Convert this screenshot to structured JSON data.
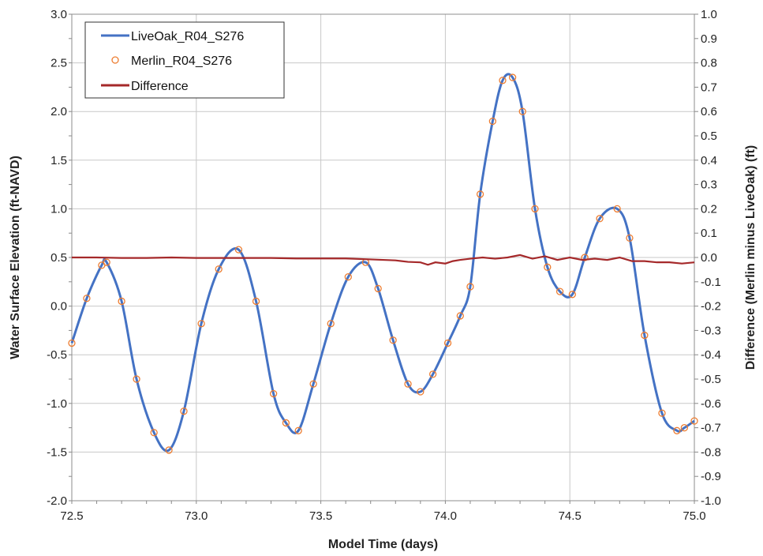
{
  "chart_data": {
    "type": "line",
    "xlabel": "Model Time (days)",
    "ylabel": "Water Surface Elevation (ft-NAVD)",
    "y2label": "Difference (Merlin minus LiveOak) (ft)",
    "xlim": [
      72.5,
      75.0
    ],
    "ylim": [
      -2.0,
      3.0
    ],
    "y2lim": [
      -1.0,
      1.0
    ],
    "xticks": [
      "72.5",
      "73.0",
      "73.5",
      "74.0",
      "74.5",
      "75.0"
    ],
    "yticks": [
      "-2.0",
      "-1.5",
      "-1.0",
      "-0.5",
      "0.0",
      "0.5",
      "1.0",
      "1.5",
      "2.0",
      "2.5",
      "3.0"
    ],
    "y2ticks": [
      "-1.0",
      "-0.9",
      "-0.8",
      "-0.7",
      "-0.6",
      "-0.5",
      "-0.4",
      "-0.3",
      "-0.2",
      "-0.1",
      "0.0",
      "0.1",
      "0.2",
      "0.3",
      "0.4",
      "0.5",
      "0.6",
      "0.7",
      "0.8",
      "0.9",
      "1.0"
    ],
    "grid": true,
    "legend_position": "top-left",
    "colors": {
      "liveoak": "#4472C4",
      "merlin": "#ED7D31",
      "difference": "#A5292A"
    },
    "series": [
      {
        "name": "LiveOak_R04_S276",
        "style": "line",
        "axis": "left",
        "x": [
          72.5,
          72.56,
          72.62,
          72.64,
          72.7,
          72.76,
          72.83,
          72.89,
          72.95,
          73.02,
          73.09,
          73.17,
          73.24,
          73.31,
          73.36,
          73.41,
          73.47,
          73.54,
          73.61,
          73.68,
          73.73,
          73.79,
          73.85,
          73.9,
          73.95,
          74.01,
          74.06,
          74.1,
          74.14,
          74.19,
          74.23,
          74.27,
          74.31,
          74.36,
          74.41,
          74.46,
          74.51,
          74.56,
          74.62,
          74.69,
          74.74,
          74.8,
          74.87,
          74.93,
          74.96,
          75.0
        ],
        "y": [
          -0.38,
          0.08,
          0.42,
          0.45,
          0.05,
          -0.75,
          -1.3,
          -1.48,
          -1.08,
          -0.18,
          0.38,
          0.58,
          0.05,
          -0.9,
          -1.2,
          -1.28,
          -0.8,
          -0.18,
          0.3,
          0.45,
          0.18,
          -0.35,
          -0.8,
          -0.88,
          -0.7,
          -0.38,
          -0.1,
          0.2,
          1.15,
          1.9,
          2.32,
          2.35,
          2.0,
          1.0,
          0.4,
          0.15,
          0.12,
          0.5,
          0.9,
          1.0,
          0.7,
          -0.3,
          -1.1,
          -1.28,
          -1.25,
          -1.18
        ]
      },
      {
        "name": "Merlin_R04_S276",
        "style": "markers",
        "axis": "left",
        "x": [
          72.5,
          72.56,
          72.62,
          72.64,
          72.7,
          72.76,
          72.83,
          72.89,
          72.95,
          73.02,
          73.09,
          73.17,
          73.24,
          73.31,
          73.36,
          73.41,
          73.47,
          73.54,
          73.61,
          73.68,
          73.73,
          73.79,
          73.85,
          73.9,
          73.95,
          74.01,
          74.06,
          74.1,
          74.14,
          74.19,
          74.23,
          74.27,
          74.31,
          74.36,
          74.41,
          74.46,
          74.51,
          74.56,
          74.62,
          74.69,
          74.74,
          74.8,
          74.87,
          74.93,
          74.96,
          75.0
        ],
        "y": [
          -0.38,
          0.08,
          0.42,
          0.45,
          0.05,
          -0.75,
          -1.3,
          -1.48,
          -1.08,
          -0.18,
          0.38,
          0.58,
          0.05,
          -0.9,
          -1.2,
          -1.28,
          -0.8,
          -0.18,
          0.3,
          0.45,
          0.18,
          -0.35,
          -0.8,
          -0.88,
          -0.7,
          -0.38,
          -0.1,
          0.2,
          1.15,
          1.9,
          2.32,
          2.35,
          2.0,
          1.0,
          0.4,
          0.15,
          0.12,
          0.5,
          0.9,
          1.0,
          0.7,
          -0.3,
          -1.1,
          -1.28,
          -1.25,
          -1.18
        ]
      },
      {
        "name": "Difference",
        "style": "line",
        "axis": "right",
        "x": [
          72.5,
          72.6,
          72.7,
          72.8,
          72.9,
          73.0,
          73.1,
          73.2,
          73.3,
          73.4,
          73.5,
          73.6,
          73.7,
          73.8,
          73.85,
          73.9,
          73.93,
          73.96,
          74.0,
          74.03,
          74.06,
          74.1,
          74.15,
          74.2,
          74.25,
          74.3,
          74.35,
          74.4,
          74.45,
          74.5,
          74.55,
          74.6,
          74.65,
          74.7,
          74.75,
          74.8,
          74.85,
          74.9,
          74.95,
          75.0
        ],
        "y": [
          0.0,
          0.0,
          -0.002,
          -0.002,
          0.0,
          -0.002,
          -0.002,
          -0.002,
          -0.002,
          -0.004,
          -0.004,
          -0.004,
          -0.008,
          -0.012,
          -0.018,
          -0.02,
          -0.03,
          -0.02,
          -0.025,
          -0.015,
          -0.01,
          -0.005,
          0.0,
          -0.005,
          0.0,
          0.01,
          -0.005,
          0.005,
          -0.01,
          0.0,
          -0.01,
          -0.005,
          -0.01,
          0.0,
          -0.015,
          -0.015,
          -0.02,
          -0.02,
          -0.025,
          -0.02
        ]
      }
    ]
  }
}
